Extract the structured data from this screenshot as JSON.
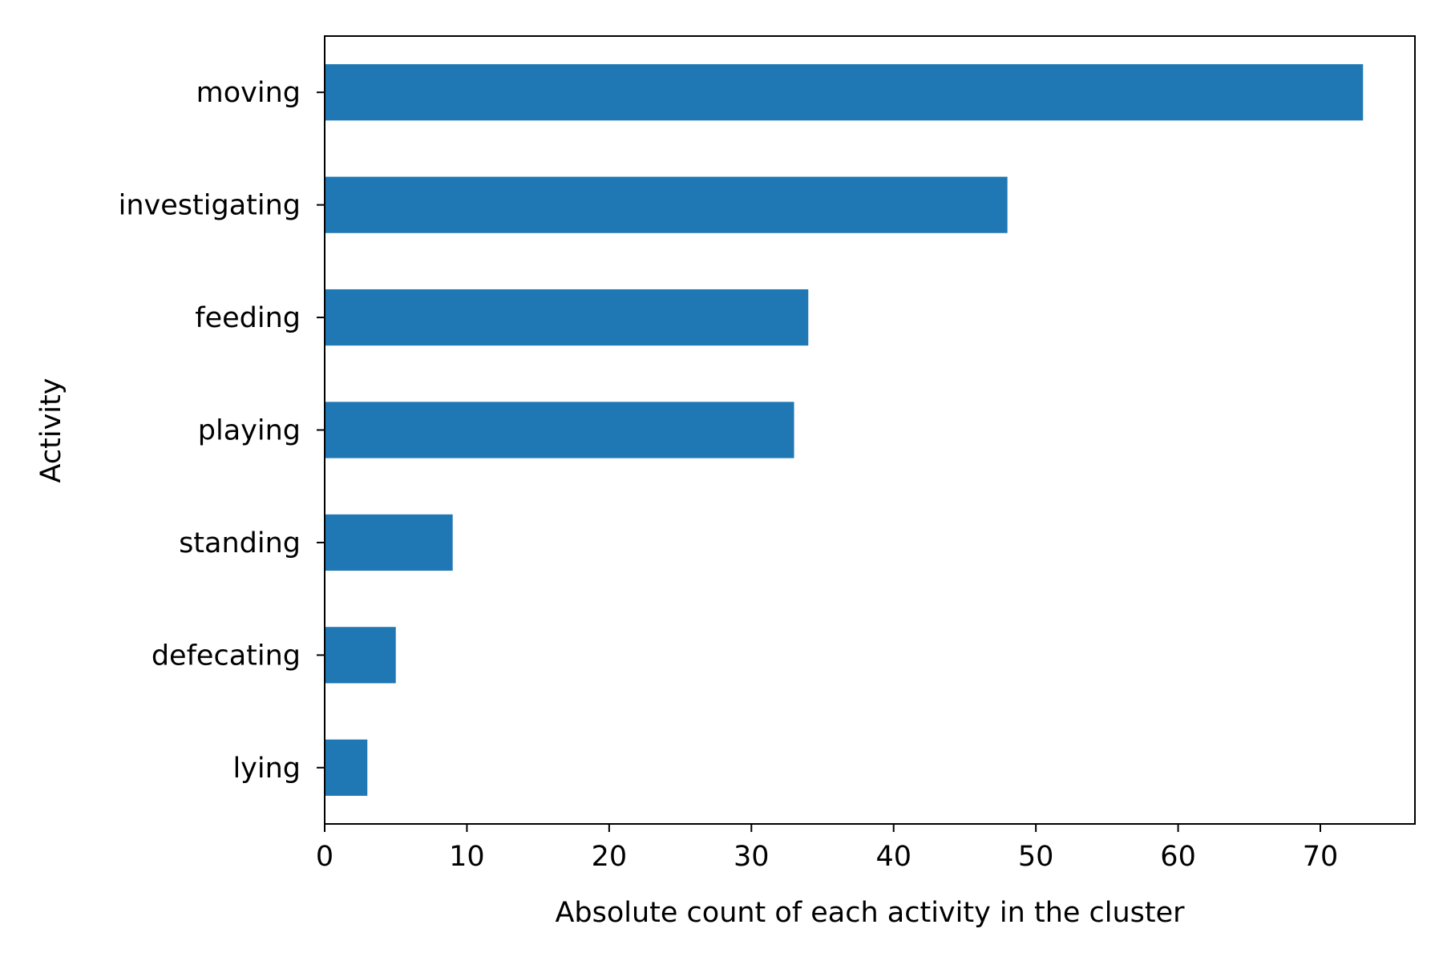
{
  "chart_data": {
    "type": "bar",
    "orientation": "horizontal",
    "title": "",
    "xlabel": "Absolute count of each activity in the cluster",
    "ylabel": "Activity",
    "categories": [
      "moving",
      "investigating",
      "feeding",
      "playing",
      "standing",
      "defecating",
      "lying"
    ],
    "values": [
      73,
      48,
      34,
      33,
      9,
      5,
      3
    ],
    "xlim": [
      0,
      76.65
    ],
    "xticks": [
      0,
      10,
      20,
      30,
      40,
      50,
      60,
      70
    ],
    "grid": false,
    "legend": "none",
    "bar_color": "#1f77b4"
  }
}
